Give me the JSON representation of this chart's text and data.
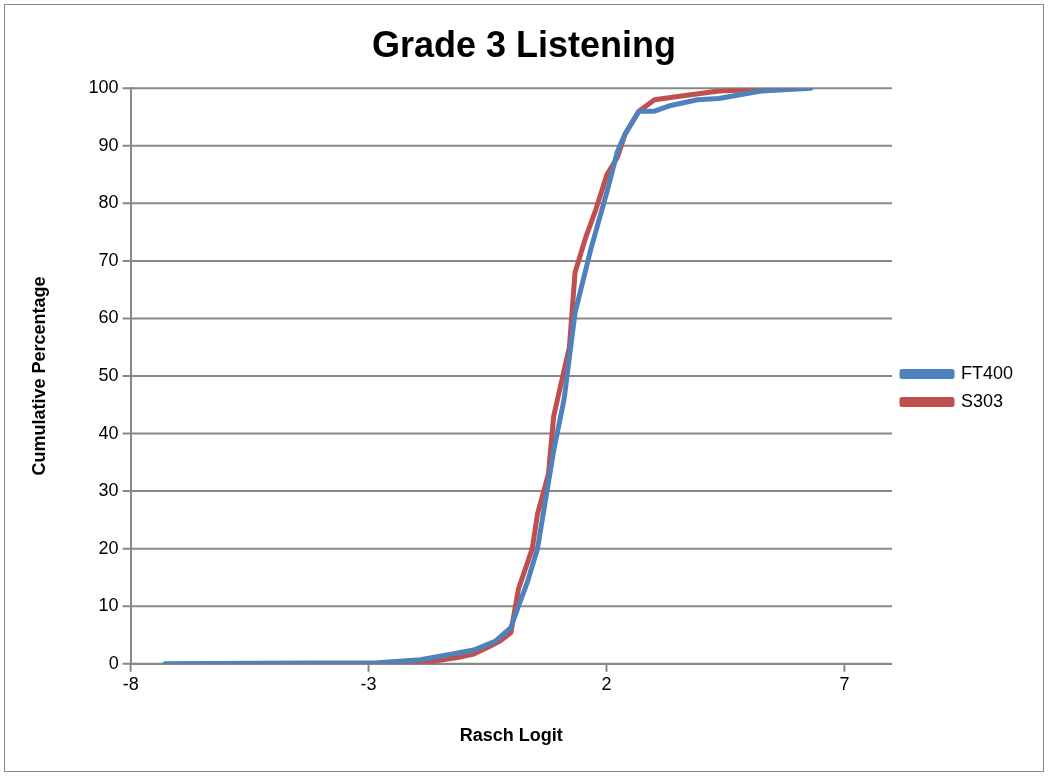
{
  "chart_data": {
    "type": "line",
    "title": "Grade 3 Listening",
    "xlabel": "Rasch Logit",
    "ylabel": "Cumulative Percentage",
    "xlim": [
      -8,
      8
    ],
    "xticks": [
      -8,
      -3,
      2,
      7
    ],
    "ylim": [
      0,
      100
    ],
    "yticks": [
      0,
      10,
      20,
      30,
      40,
      50,
      60,
      70,
      80,
      90,
      100
    ],
    "grid": "y",
    "legend": "right",
    "marker": "none",
    "line_style": "solid",
    "series": [
      {
        "name": "FT400",
        "color": "#4f81bd",
        "x": [
          -7.28,
          -2.81,
          -1.91,
          -1.24,
          -0.79,
          -0.34,
          -0.01,
          0.15,
          0.33,
          0.55,
          0.89,
          1.11,
          1.34,
          1.67,
          2.01,
          2.23,
          2.39,
          2.68,
          3.01,
          3.35,
          3.91,
          4.36,
          5.25,
          6.3
        ],
        "values": [
          0,
          0.2,
          0.7,
          1.7,
          2.4,
          3.9,
          6.3,
          10,
          14,
          20,
          37,
          46,
          61,
          72,
          82,
          89,
          92,
          96,
          96,
          97,
          98,
          98.2,
          99.5,
          100
        ]
      },
      {
        "name": "S303",
        "color": "#c0504d",
        "x": [
          -6.3,
          -2.36,
          -1.69,
          -1.13,
          -0.79,
          -0.46,
          -0.23,
          -0.01,
          0.15,
          0.44,
          0.55,
          0.78,
          0.89,
          1.11,
          1.22,
          1.34,
          1.56,
          1.78,
          2.01,
          2.23,
          2.39,
          2.68,
          3.01,
          3.46,
          4.36,
          5.92
        ],
        "values": [
          0,
          0,
          0.4,
          1.1,
          1.7,
          3,
          4,
          5.4,
          13,
          20,
          26,
          33,
          43,
          51,
          55,
          68,
          74,
          79,
          85,
          88,
          92,
          96,
          98,
          98.5,
          99.5,
          100
        ]
      }
    ]
  }
}
